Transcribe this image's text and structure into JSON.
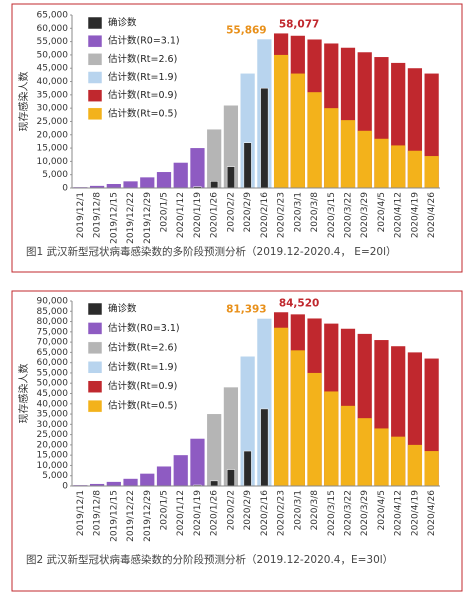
{
  "chart_data": [
    {
      "type": "bar",
      "caption": "图1 武汉新型冠状病毒感染数的多阶段预测分析（2019.12-2020.4， E=20l）",
      "y_label": "现存感染人数",
      "categories": [
        "2019/12/1",
        "2019/12/8",
        "2019/12/15",
        "2019/12/22",
        "2019/12/29",
        "2020/1/5",
        "2020/1/12",
        "2020/1/19",
        "2020/1/26",
        "2020/2/2",
        "2020/2/9",
        "2020/2/16",
        "2020/2/23",
        "2020/3/1",
        "2020/3/8",
        "2020/3/15",
        "2020/3/22",
        "2020/3/29",
        "2020/4/5",
        "2020/4/12",
        "2020/4/19",
        "2020/4/26"
      ],
      "series": [
        {
          "name": "确诊数",
          "color": "#2b2b2b",
          "values": [
            null,
            null,
            null,
            null,
            null,
            null,
            null,
            500,
            2500,
            8000,
            17000,
            37500,
            null,
            null,
            null,
            null,
            null,
            null,
            null,
            null,
            null,
            null
          ]
        },
        {
          "name": "估计数(R0=3.1)",
          "color": "#8e5bc2",
          "values": [
            300,
            800,
            1500,
            2500,
            4000,
            6000,
            9500,
            15000,
            null,
            null,
            null,
            null,
            null,
            null,
            null,
            null,
            null,
            null,
            null,
            null,
            null,
            null
          ]
        },
        {
          "name": "估计数(Rt=2.6)",
          "color": "#b5b5b5",
          "values": [
            null,
            null,
            null,
            null,
            null,
            null,
            null,
            null,
            22000,
            31000,
            null,
            null,
            null,
            null,
            null,
            null,
            null,
            null,
            null,
            null,
            null,
            null
          ]
        },
        {
          "name": "估计数(Rt=1.9)",
          "color": "#b8d4ee",
          "label_color": "#e8901a",
          "values": [
            null,
            null,
            null,
            null,
            null,
            null,
            null,
            null,
            null,
            null,
            43000,
            55869,
            null,
            null,
            null,
            null,
            null,
            null,
            null,
            null,
            null,
            null
          ],
          "value_labels": [
            null,
            null,
            null,
            null,
            null,
            null,
            null,
            null,
            null,
            null,
            null,
            "55,869",
            null,
            null,
            null,
            null,
            null,
            null,
            null,
            null,
            null,
            null
          ]
        },
        {
          "name": "估计数(Rt=0.9)",
          "color": "#c0282e",
          "label_color": "#c0282e",
          "values": [
            null,
            null,
            null,
            null,
            null,
            null,
            null,
            null,
            null,
            null,
            null,
            null,
            58077,
            57200,
            55800,
            54300,
            52700,
            51000,
            49200,
            47000,
            45000,
            43000
          ],
          "value_labels": [
            null,
            null,
            null,
            null,
            null,
            null,
            null,
            null,
            null,
            null,
            null,
            null,
            "58,077",
            null,
            null,
            null,
            null,
            null,
            null,
            null,
            null,
            null
          ]
        },
        {
          "name": "估计数(Rt=0.5)",
          "color": "#f3b21b",
          "values": [
            null,
            null,
            null,
            null,
            null,
            null,
            null,
            null,
            null,
            null,
            null,
            null,
            50000,
            43000,
            36000,
            30000,
            25500,
            21500,
            18500,
            16000,
            14000,
            12000
          ]
        }
      ],
      "ylim": [
        0,
        65000
      ],
      "yticks": [
        0,
        {
          "value": 5000,
          "label": "5,000"
        },
        {
          "value": 10000,
          "label": "10,000"
        },
        {
          "value": 15000,
          "label": "15,000"
        },
        {
          "value": 20000,
          "label": "20,000"
        },
        {
          "value": 25000,
          "label": "25,000"
        },
        {
          "value": 30000,
          "label": "30,000"
        },
        {
          "value": 35000,
          "label": "35,000"
        },
        {
          "value": 40000,
          "label": "40,000"
        },
        {
          "value": 45000,
          "label": "45,000"
        },
        {
          "value": 50000,
          "label": "50,000"
        },
        {
          "value": 55000,
          "label": "55,000"
        },
        {
          "value": 60000,
          "label": "60,000"
        },
        {
          "value": 65000,
          "label": "65,000"
        }
      ],
      "legend": "upper left"
    },
    {
      "type": "bar",
      "caption": "图2 武汉新型冠状病毒感染数的分阶段预测分析（2019.12-2020.4，E=30l）",
      "y_label": "现存感染人数",
      "categories": [
        "2019/12/1",
        "2019/12/8",
        "2019/12/15",
        "2019/12/22",
        "2019/12/29",
        "2020/1/5",
        "2020/1/12",
        "2020/1/19",
        "2020/1/26",
        "2020/2/2",
        "2020/2/9",
        "2020/2/16",
        "2020/2/23",
        "2020/3/1",
        "2020/3/8",
        "2020/3/15",
        "2020/3/22",
        "2020/3/29",
        "2020/4/5",
        "2020/4/12",
        "2020/4/19",
        "2020/4/26"
      ],
      "series": [
        {
          "name": "确诊数",
          "color": "#2b2b2b",
          "values": [
            null,
            null,
            null,
            null,
            null,
            null,
            null,
            500,
            2500,
            8000,
            17000,
            37500,
            null,
            null,
            null,
            null,
            null,
            null,
            null,
            null,
            null,
            null
          ]
        },
        {
          "name": "估计数(R0=3.1)",
          "color": "#8e5bc2",
          "values": [
            400,
            1000,
            2000,
            3500,
            6000,
            9500,
            15000,
            23000,
            null,
            null,
            null,
            null,
            null,
            null,
            null,
            null,
            null,
            null,
            null,
            null,
            null,
            null
          ]
        },
        {
          "name": "估计数(Rt=2.6)",
          "color": "#b5b5b5",
          "values": [
            null,
            null,
            null,
            null,
            null,
            null,
            null,
            null,
            35000,
            48000,
            null,
            null,
            null,
            null,
            null,
            null,
            null,
            null,
            null,
            null,
            null,
            null
          ]
        },
        {
          "name": "估计数(Rt=1.9)",
          "color": "#b8d4ee",
          "label_color": "#e8901a",
          "values": [
            null,
            null,
            null,
            null,
            null,
            null,
            null,
            null,
            null,
            null,
            63000,
            81393,
            null,
            null,
            null,
            null,
            null,
            null,
            null,
            null,
            null,
            null
          ],
          "value_labels": [
            null,
            null,
            null,
            null,
            null,
            null,
            null,
            null,
            null,
            null,
            null,
            "81,393",
            null,
            null,
            null,
            null,
            null,
            null,
            null,
            null,
            null,
            null
          ]
        },
        {
          "name": "估计数(Rt=0.9)",
          "color": "#c0282e",
          "label_color": "#c0282e",
          "values": [
            null,
            null,
            null,
            null,
            null,
            null,
            null,
            null,
            null,
            null,
            null,
            null,
            84520,
            83500,
            81500,
            79000,
            76500,
            74000,
            71000,
            68000,
            65000,
            62000
          ],
          "value_labels": [
            null,
            null,
            null,
            null,
            null,
            null,
            null,
            null,
            null,
            null,
            null,
            null,
            "84,520",
            null,
            null,
            null,
            null,
            null,
            null,
            null,
            null,
            null
          ]
        },
        {
          "name": "估计数(Rt=0.5)",
          "color": "#f3b21b",
          "values": [
            null,
            null,
            null,
            null,
            null,
            null,
            null,
            null,
            null,
            null,
            null,
            null,
            77000,
            66000,
            55000,
            46000,
            39000,
            33000,
            28000,
            24000,
            20000,
            17000
          ]
        }
      ],
      "ylim": [
        0,
        90000
      ],
      "yticks": [
        0,
        {
          "value": 5000,
          "label": "5,000"
        },
        {
          "value": 10000,
          "label": "10,000"
        },
        {
          "value": 15000,
          "label": "15,000"
        },
        {
          "value": 20000,
          "label": "20,000"
        },
        {
          "value": 25000,
          "label": "25,000"
        },
        {
          "value": 30000,
          "label": "30,000"
        },
        {
          "value": 35000,
          "label": "35,000"
        },
        {
          "value": 40000,
          "label": "40,000"
        },
        {
          "value": 45000,
          "label": "45,000"
        },
        {
          "value": 50000,
          "label": "50,000"
        },
        {
          "value": 55000,
          "label": "55,000"
        },
        {
          "value": 60000,
          "label": "60,000"
        },
        {
          "value": 65000,
          "label": "65,000"
        },
        {
          "value": 70000,
          "label": "70,000"
        },
        {
          "value": 75000,
          "label": "75,000"
        },
        {
          "value": 80000,
          "label": "80,000"
        },
        {
          "value": 85000,
          "label": "85,000"
        },
        {
          "value": 90000,
          "label": "90,000"
        }
      ],
      "legend": "upper left"
    }
  ]
}
